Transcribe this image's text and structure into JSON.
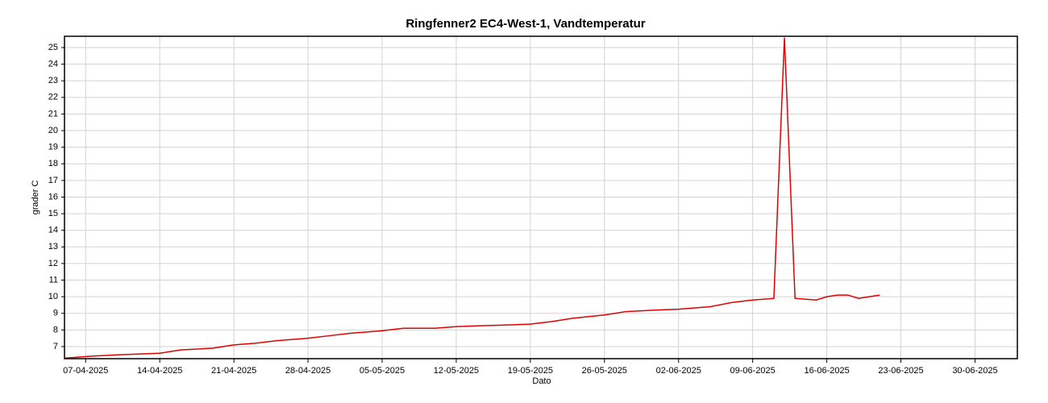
{
  "chart_data": {
    "type": "line",
    "title": "Ringfenner2 EC4-West-1, Vandtemperatur",
    "xlabel": "Dato",
    "ylabel": "grader C",
    "x": [
      "05-04-2025",
      "07-04-2025",
      "10-04-2025",
      "12-04-2025",
      "14-04-2025",
      "16-04-2025",
      "19-04-2025",
      "21-04-2025",
      "23-04-2025",
      "25-04-2025",
      "28-04-2025",
      "30-04-2025",
      "02-05-2025",
      "05-05-2025",
      "07-05-2025",
      "10-05-2025",
      "12-05-2025",
      "14-05-2025",
      "17-05-2025",
      "19-05-2025",
      "21-05-2025",
      "23-05-2025",
      "26-05-2025",
      "28-05-2025",
      "31-05-2025",
      "02-06-2025",
      "05-06-2025",
      "07-06-2025",
      "09-06-2025",
      "11-06-2025",
      "12-06-2025",
      "13-06-2025",
      "15-06-2025",
      "16-06-2025",
      "17-06-2025",
      "18-06-2025",
      "19-06-2025",
      "20-06-2025",
      "21-06-2025"
    ],
    "series": [
      {
        "name": "Vandtemperatur",
        "color": "#e00000",
        "values": [
          6.3,
          6.4,
          6.5,
          6.55,
          6.6,
          6.8,
          6.9,
          7.1,
          7.2,
          7.35,
          7.5,
          7.65,
          7.8,
          7.95,
          8.1,
          8.1,
          8.2,
          8.25,
          8.3,
          8.35,
          8.5,
          8.7,
          8.9,
          9.1,
          9.2,
          9.25,
          9.4,
          9.65,
          9.8,
          9.9,
          25.6,
          9.9,
          9.8,
          10.0,
          10.1,
          10.1,
          9.9,
          10.0,
          10.1
        ]
      }
    ],
    "xlim": [
      "05-04-2025",
      "04-07-2025"
    ],
    "xticks": [
      "07-04-2025",
      "14-04-2025",
      "21-04-2025",
      "28-04-2025",
      "05-05-2025",
      "12-05-2025",
      "19-05-2025",
      "26-05-2025",
      "02-06-2025",
      "09-06-2025",
      "16-06-2025",
      "23-06-2025",
      "30-06-2025"
    ],
    "ylim": [
      6.27,
      25.68
    ],
    "yticks": [
      7,
      8,
      9,
      10,
      11,
      12,
      13,
      14,
      15,
      16,
      17,
      18,
      19,
      20,
      21,
      22,
      23,
      24,
      25
    ],
    "grid": true
  }
}
